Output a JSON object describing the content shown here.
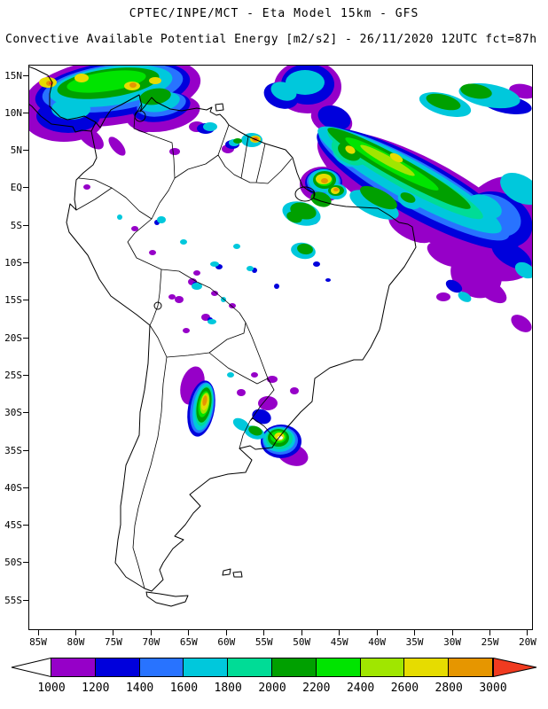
{
  "header": {
    "line1": "CPTEC/INPE/MCT -  Eta Model 15km - GFS",
    "line2": "Convective Available Potential Energy [m2/s2] - 26/11/2020 12UTC fct=87h"
  },
  "map": {
    "lat_labels": [
      "15N",
      "10N",
      "5N",
      "EQ",
      "5S",
      "10S",
      "15S",
      "20S",
      "25S",
      "30S",
      "35S",
      "40S",
      "45S",
      "50S",
      "55S"
    ],
    "lon_labels": [
      "85W",
      "80W",
      "75W",
      "70W",
      "65W",
      "60W",
      "55W",
      "50W",
      "45W",
      "40W",
      "35W",
      "30W",
      "25W",
      "20W"
    ]
  },
  "colorbar": {
    "levels": [
      "1000",
      "1200",
      "1400",
      "1600",
      "1800",
      "2000",
      "2200",
      "2400",
      "2600",
      "2800",
      "3000"
    ],
    "below_color": "#ffffff",
    "above_color": "#f03b20",
    "segment_colors": [
      "#9600c8",
      "#0000dc",
      "#2873ff",
      "#00c8dc",
      "#00dc96",
      "#00a000",
      "#00e400",
      "#a0e600",
      "#e6dc00",
      "#e69600"
    ]
  }
}
